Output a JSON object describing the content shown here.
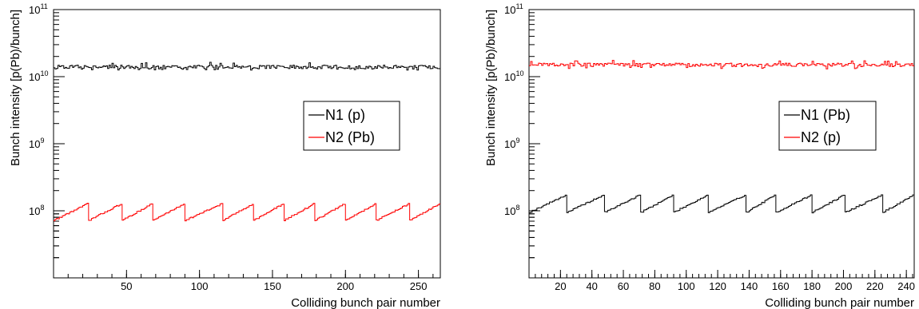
{
  "chart_data": [
    {
      "type": "line",
      "step": true,
      "xlabel": "Colliding bunch pair number",
      "ylabel": "Bunch intensity [p(Pb)/bunch]",
      "log_y": true,
      "xlim": [
        0,
        265
      ],
      "ylim": [
        10000000.0,
        100000000000.0
      ],
      "x_ticks": [
        50,
        100,
        150,
        200,
        250
      ],
      "y_tick_labels": [
        {
          "base": "10",
          "exp": "8"
        },
        {
          "base": "10",
          "exp": "9"
        },
        {
          "base": "10",
          "exp": "10"
        },
        {
          "base": "10",
          "exp": "11"
        }
      ],
      "legend": {
        "position": "right-middle"
      },
      "series": [
        {
          "name": "N1 (p)",
          "color": "#000000",
          "shape": "flat",
          "level": 14000000000.0,
          "min": 12500000000.0,
          "max": 16500000000.0
        },
        {
          "name": "N2 (Pb)",
          "color": "#ff0000",
          "shape": "sawtooth",
          "low": 72000000.0,
          "high": 130000000.0,
          "resets": [
            24,
            47,
            68,
            90,
            116,
            137,
            158,
            179,
            200,
            221,
            244
          ]
        }
      ]
    },
    {
      "type": "line",
      "step": true,
      "xlabel": "Colliding bunch pair number",
      "ylabel": "Bunch intensity [p(Pb)/bunch]",
      "log_y": true,
      "xlim": [
        0,
        245
      ],
      "ylim": [
        10000000.0,
        100000000000.0
      ],
      "x_ticks": [
        20,
        40,
        60,
        80,
        100,
        120,
        140,
        160,
        180,
        200,
        220,
        240
      ],
      "y_tick_labels": [
        {
          "base": "10",
          "exp": "8"
        },
        {
          "base": "10",
          "exp": "9"
        },
        {
          "base": "10",
          "exp": "10"
        },
        {
          "base": "10",
          "exp": "11"
        }
      ],
      "legend": {
        "position": "right-middle"
      },
      "series": [
        {
          "name": "N1 (Pb)",
          "color": "#000000",
          "shape": "sawtooth",
          "low": 95000000.0,
          "high": 175000000.0,
          "resets": [
            24,
            48,
            71,
            92,
            114,
            138,
            157,
            180,
            201,
            225
          ]
        },
        {
          "name": "N2 (p)",
          "color": "#ff0000",
          "shape": "flat",
          "level": 15000000000.0,
          "min": 13000000000.0,
          "max": 17500000000.0
        }
      ]
    }
  ]
}
